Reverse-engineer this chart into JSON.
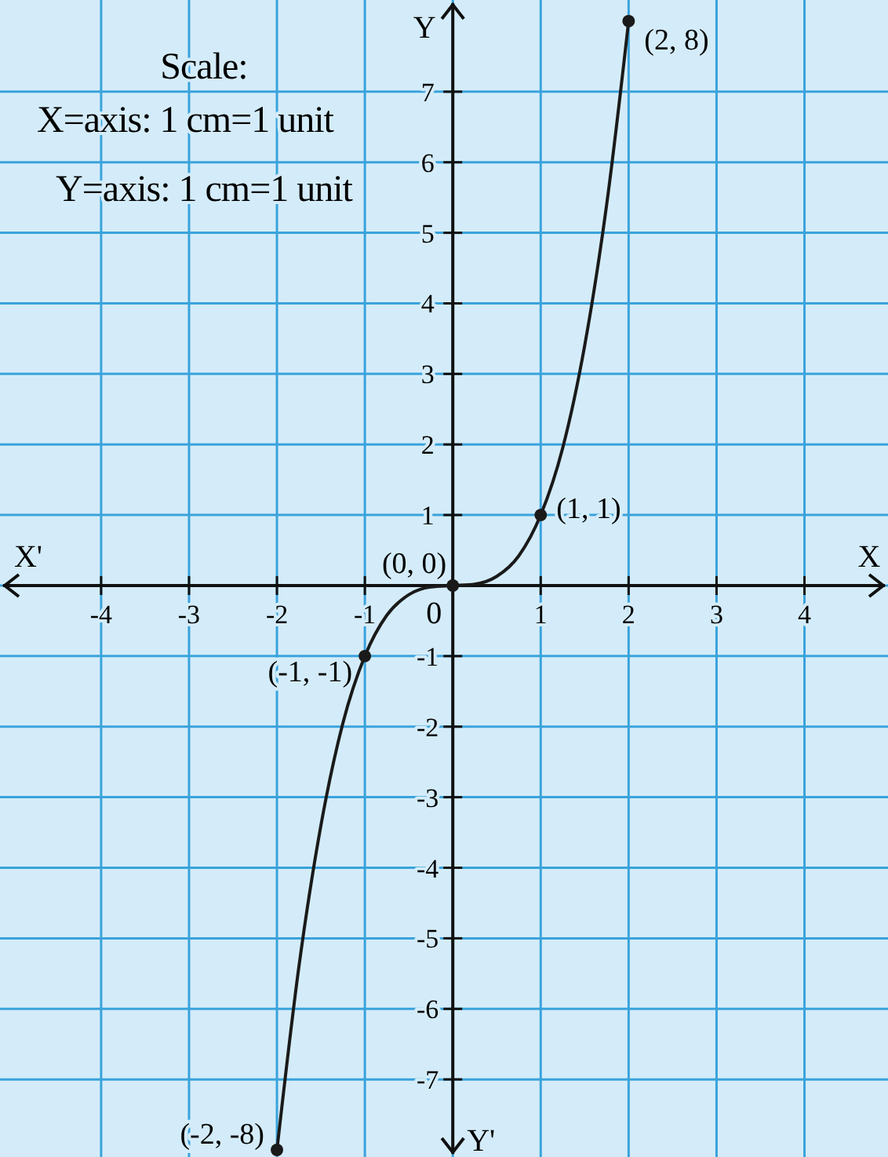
{
  "chart_data": {
    "type": "line",
    "xlabel": "X",
    "ylabel": "Y",
    "xlim": [
      -5.15,
      4.95
    ],
    "ylim": [
      -8.1,
      8.3
    ],
    "xticks": [
      -4,
      -3,
      -2,
      -1,
      {
        "value": 0,
        "label": null
      },
      1,
      2,
      3,
      4
    ],
    "yticks": [
      -7,
      -6,
      -5,
      -4,
      -3,
      -2,
      -1,
      {
        "value": 0,
        "label": null
      },
      1,
      2,
      3,
      4,
      5,
      6,
      7
    ],
    "grid": true,
    "series": [
      {
        "color": "#1a1a1a",
        "marker": "none",
        "x": [
          -2,
          -1.75,
          -1.5,
          -1.25,
          -1,
          -0.75,
          -0.5,
          -0.25,
          0,
          0.25,
          0.5,
          0.75,
          1,
          1.25,
          1.5,
          1.75,
          2
        ],
        "values": [
          -8,
          -5.4,
          -3.4,
          -1.95,
          -1,
          -0.42,
          -0.13,
          -0.02,
          0,
          0.02,
          0.13,
          0.42,
          1,
          1.95,
          3.4,
          5.4,
          8
        ]
      },
      {
        "type": "scatter",
        "color": "#1a1a1a",
        "marker": "circle",
        "x": [
          -2,
          -1,
          0,
          1,
          2
        ],
        "values": [
          -8,
          -1,
          0,
          1,
          8
        ]
      }
    ],
    "annotations": [
      "Scale:",
      "X=axis: 1 cm=1 unit",
      "Y=axis: 1 cm=1 unit",
      "X'",
      "Y'",
      "0",
      {
        "text": "(2, 8)",
        "x": 2,
        "y": 8
      },
      {
        "text": "(1, 1)",
        "x": 1,
        "y": 1
      },
      {
        "text": "(0, 0)",
        "x": 0,
        "y": 0
      },
      {
        "text": "(-1, -1)",
        "x": -1,
        "y": -1
      },
      {
        "text": "(-2, -8)",
        "x": -2,
        "y": -8
      }
    ]
  }
}
